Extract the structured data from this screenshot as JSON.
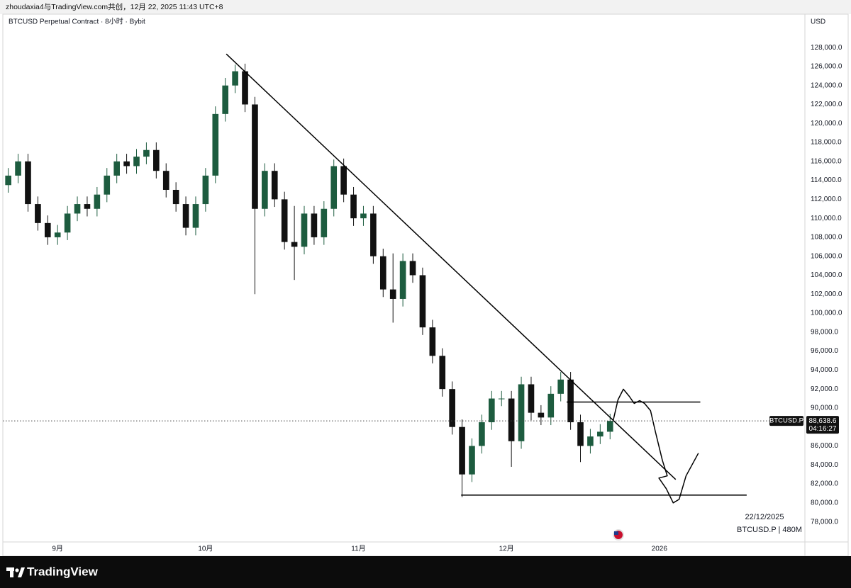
{
  "header": {
    "text": "zhoudaxia4与TradingView.com共创，12月 22, 2025 11:43 UTC+8"
  },
  "chart_data": {
    "type": "candlestick",
    "title": "BTCUSD Perpetual Contract · 8小时 · Bybit",
    "y_unit": "USD",
    "up_color": "#1d5c3f",
    "down_color": "#111111",
    "grid": false,
    "x": [
      -10,
      -8,
      -6,
      -4,
      -2,
      0,
      2,
      4,
      6,
      8,
      10,
      12,
      14,
      16,
      18,
      20,
      22,
      24,
      26,
      28,
      30,
      32,
      34,
      36,
      38,
      40,
      42,
      44,
      46,
      48,
      50,
      52,
      54,
      56,
      58,
      60,
      62,
      64,
      66,
      68,
      70,
      72,
      74,
      76,
      78,
      80,
      82,
      84,
      86,
      88,
      90,
      92,
      94,
      96,
      98,
      100,
      102,
      104,
      106,
      108,
      110,
      112
    ],
    "open": [
      113500,
      114500,
      116000,
      111500,
      109500,
      108000,
      108500,
      110500,
      111500,
      111000,
      112500,
      114500,
      116000,
      115500,
      116500,
      117200,
      115000,
      113000,
      111500,
      109000,
      111500,
      114500,
      121000,
      124000,
      125500,
      122000,
      111000,
      115000,
      112000,
      107500,
      107000,
      110500,
      108000,
      111000,
      115500,
      112500,
      110000,
      110500,
      106000,
      102500,
      101500,
      105500,
      104000,
      98500,
      95500,
      92000,
      88000,
      83000,
      86000,
      88500,
      91000,
      91000,
      86500,
      92500,
      89500,
      89000,
      91500,
      93000,
      88500,
      86000,
      87000,
      87500
    ],
    "high": [
      115300,
      116800,
      116800,
      112300,
      110300,
      109300,
      111300,
      112300,
      112300,
      113300,
      115300,
      116800,
      116800,
      117300,
      118000,
      118000,
      115800,
      113800,
      112300,
      112300,
      115300,
      121800,
      124800,
      126200,
      126300,
      122800,
      115800,
      115800,
      112800,
      111300,
      111300,
      111300,
      111800,
      116200,
      116300,
      113300,
      111300,
      111300,
      106800,
      106300,
      106300,
      106300,
      104800,
      99300,
      96300,
      92800,
      88800,
      86800,
      89300,
      91800,
      91800,
      91800,
      93300,
      93300,
      90300,
      92300,
      93800,
      93800,
      89300,
      87800,
      88300,
      89400
    ],
    "low": [
      112700,
      113700,
      110700,
      108700,
      107200,
      107200,
      107700,
      109700,
      110200,
      110200,
      111700,
      113700,
      114700,
      114700,
      115700,
      114200,
      112200,
      110700,
      108200,
      108200,
      110700,
      113700,
      120200,
      123200,
      121200,
      102000,
      110200,
      111200,
      106700,
      103500,
      106200,
      107200,
      107200,
      110200,
      111700,
      109200,
      109200,
      105200,
      101700,
      99000,
      100700,
      103200,
      97700,
      94700,
      91200,
      87200,
      80600,
      82200,
      85200,
      87700,
      90200,
      83800,
      85700,
      88700,
      88200,
      88200,
      90700,
      87700,
      84300,
      85200,
      86200,
      86700
    ],
    "close": [
      114500,
      116000,
      111500,
      109500,
      108000,
      108500,
      110500,
      111500,
      111000,
      112500,
      114500,
      116000,
      115500,
      116500,
      117200,
      115000,
      113000,
      111500,
      109000,
      111500,
      114500,
      121000,
      124000,
      125500,
      122000,
      111000,
      115000,
      112000,
      107500,
      107000,
      110500,
      108000,
      111000,
      115500,
      112500,
      110000,
      110500,
      106000,
      102500,
      101500,
      105500,
      104000,
      98500,
      95500,
      92000,
      88000,
      83000,
      86000,
      88500,
      91000,
      91000,
      86500,
      92500,
      89500,
      89000,
      91500,
      93000,
      88500,
      86000,
      87000,
      87500,
      88638.6
    ],
    "xlim": [
      -11.1,
      151.5
    ],
    "xticks": [
      {
        "value": 0,
        "label": "9月"
      },
      {
        "value": 30,
        "label": "10月"
      },
      {
        "value": 61,
        "label": "11月"
      },
      {
        "value": 91,
        "label": "12月"
      },
      {
        "value": 122,
        "label": "2026"
      }
    ],
    "ylim": [
      75880,
      131520
    ],
    "yticks": [
      {
        "value": 78000,
        "label": "78,000.0"
      },
      {
        "value": 80000,
        "label": "80,000.0"
      },
      {
        "value": 82000,
        "label": "82,000.0"
      },
      {
        "value": 84000,
        "label": "84,000.0"
      },
      {
        "value": 86000,
        "label": "86,000.0"
      },
      {
        "value": 88000,
        "label": "88,000.0"
      },
      {
        "value": 90000,
        "label": "90,000.0"
      },
      {
        "value": 92000,
        "label": "92,000.0"
      },
      {
        "value": 94000,
        "label": "94,000.0"
      },
      {
        "value": 96000,
        "label": "96,000.0"
      },
      {
        "value": 98000,
        "label": "98,000.0"
      },
      {
        "value": 100000,
        "label": "100,000.0"
      },
      {
        "value": 102000,
        "label": "102,000.0"
      },
      {
        "value": 104000,
        "label": "104,000.0"
      },
      {
        "value": 106000,
        "label": "106,000.0"
      },
      {
        "value": 108000,
        "label": "108,000.0"
      },
      {
        "value": 110000,
        "label": "110,000.0"
      },
      {
        "value": 112000,
        "label": "112,000.0"
      },
      {
        "value": 114000,
        "label": "114,000.0"
      },
      {
        "value": 116000,
        "label": "116,000.0"
      },
      {
        "value": 118000,
        "label": "118,000.0"
      },
      {
        "value": 120000,
        "label": "120,000.0"
      },
      {
        "value": 122000,
        "label": "122,000.0"
      },
      {
        "value": 124000,
        "label": "124,000.0"
      },
      {
        "value": 126000,
        "label": "126,000.0"
      },
      {
        "value": 128000,
        "label": "128,000.0"
      }
    ],
    "last_price": {
      "value": 88638.6,
      "label": "88,638.6"
    },
    "symbol_tag": "BTCUSD.P",
    "countdown": "04:16:27",
    "drawings": [
      {
        "type": "line",
        "x": [
          34.2,
          125.3
        ],
        "y": [
          127320,
          82470
        ]
      },
      {
        "type": "line",
        "x": [
          103.2,
          130.3
        ],
        "y": [
          90630,
          90630
        ]
      },
      {
        "type": "line",
        "x": [
          81.8,
          139.7
        ],
        "y": [
          80820,
          80820
        ]
      },
      {
        "type": "curve",
        "x": [
          112.6,
          113.6,
          114.7,
          115.9,
          116.9,
          118.0,
          119.0,
          120.2,
          121.2,
          122.6,
          123.6,
          121.9,
          123.4,
          124.8,
          126.0,
          127.4,
          129.9
        ],
        "y": [
          88600,
          90860,
          91980,
          91230,
          90480,
          90780,
          90480,
          89730,
          87490,
          84490,
          82850,
          82620,
          81500,
          80000,
          80370,
          82850,
          85240
        ]
      }
    ],
    "watermark_date": "22/12/2025",
    "watermark_symbol": "BTCUSD.P | 480M"
  },
  "footer": {
    "brand": "TradingView"
  }
}
